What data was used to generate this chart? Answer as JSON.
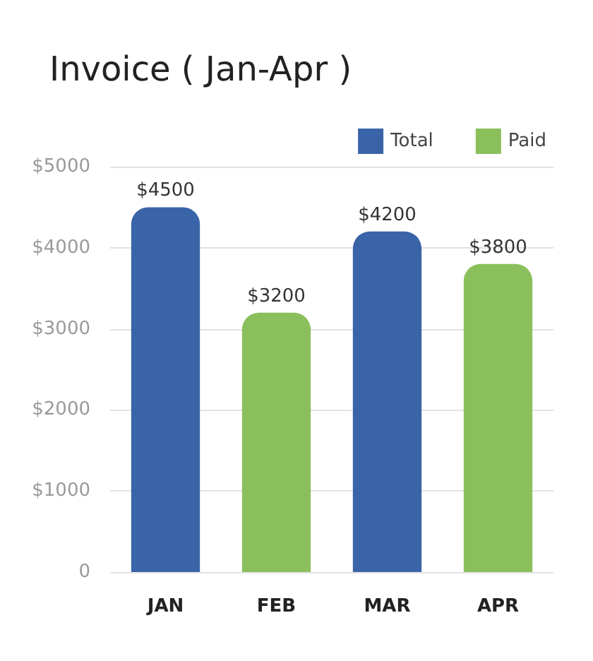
{
  "chart_data": {
    "type": "bar",
    "title": "Invoice ( Jan-Apr )",
    "categories": [
      "JAN",
      "FEB",
      "MAR",
      "APR"
    ],
    "stacked": true,
    "series": [
      {
        "name": "Total",
        "color": "#3a64a8",
        "values": [
          4500,
          null,
          4200,
          null
        ],
        "value_labels": [
          "$4500",
          null,
          "$4200",
          null
        ]
      },
      {
        "name": "Paid",
        "color": "#8bbf5c",
        "values": [
          null,
          3200,
          null,
          3800
        ],
        "value_labels": [
          null,
          "$3200",
          null,
          "$3800"
        ]
      }
    ],
    "ylim": [
      0,
      5000
    ],
    "yticks": [
      {
        "value": 0,
        "label": "0"
      },
      {
        "value": 1000,
        "label": "$1000"
      },
      {
        "value": 2000,
        "label": "$2000"
      },
      {
        "value": 3000,
        "label": "$3000"
      },
      {
        "value": 4000,
        "label": "$4000"
      },
      {
        "value": 5000,
        "label": "$5000"
      }
    ],
    "grid": "y",
    "legend": "top right"
  }
}
